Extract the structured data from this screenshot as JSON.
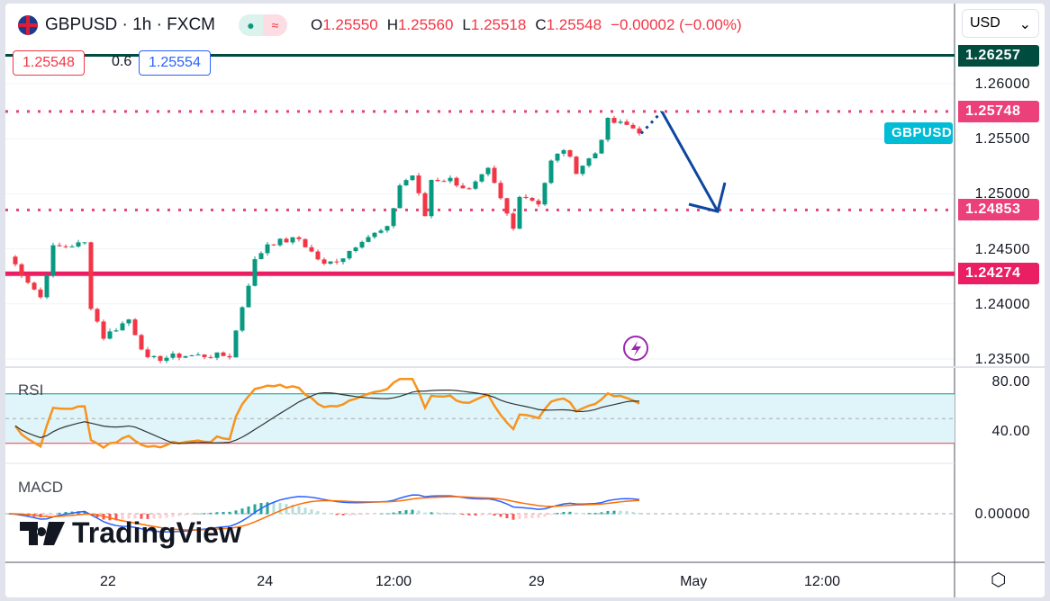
{
  "header": {
    "symbol": "GBPUSD",
    "interval": "1h",
    "exchange": "FXCM",
    "sep": "·",
    "open_l": "O",
    "open": "1.25550",
    "high_l": "H",
    "high": "1.25560",
    "low_l": "L",
    "low": "1.25518",
    "close_l": "C",
    "close": "1.25548",
    "change": "−0.00002 (−0.00%)"
  },
  "trade": {
    "sell": "1.25548",
    "spread": "0.6",
    "buy": "1.25554"
  },
  "currency": "USD",
  "price_axis": [
    "1.26000",
    "1.25500",
    "1.25000",
    "1.24500",
    "1.24000",
    "1.23500"
  ],
  "levels": [
    {
      "label": "1.26257",
      "price": 1.26257,
      "color": "#004d40",
      "style": "solid"
    },
    {
      "label": "1.25748",
      "price": 1.25748,
      "color": "#ec407a",
      "style": "dotted"
    },
    {
      "label": "1.24853",
      "price": 1.24853,
      "color": "#ec407a",
      "style": "dotted"
    },
    {
      "label": "1.24274",
      "price": 1.24274,
      "color": "#e91e63",
      "style": "solid"
    }
  ],
  "symbol_tag": "GBPUSD",
  "rsi": {
    "label": "RSI",
    "axis": [
      "80.00",
      "40.00"
    ]
  },
  "macd": {
    "label": "MACD",
    "axis": [
      "0.00000"
    ]
  },
  "time_axis": [
    {
      "label": "22",
      "i": 15.7
    },
    {
      "label": "24",
      "i": 40.6
    },
    {
      "label": "12:00",
      "i": 61
    },
    {
      "label": "29",
      "i": 83.7
    },
    {
      "label": "May",
      "i": 108.6
    },
    {
      "label": "12:00",
      "i": 129
    }
  ],
  "brand": "TradingView",
  "colors": {
    "up": "#089981",
    "down": "#f23645",
    "rsi": "#f7931e",
    "arrow": "#0d47a1"
  },
  "chart_data": {
    "type": "candlestick",
    "ylim": [
      1.234,
      1.266
    ],
    "waypoints": [
      [
        0,
        1.2443
      ],
      [
        5,
        1.2406
      ],
      [
        7,
        1.2451
      ],
      [
        12,
        1.2455
      ],
      [
        13,
        1.2398
      ],
      [
        15,
        1.237
      ],
      [
        19,
        1.2386
      ],
      [
        22,
        1.2349
      ],
      [
        27,
        1.2353
      ],
      [
        35,
        1.2353
      ],
      [
        37,
        1.2398
      ],
      [
        39,
        1.2439
      ],
      [
        41,
        1.2455
      ],
      [
        46,
        1.2459
      ],
      [
        50,
        1.2435
      ],
      [
        53,
        1.2443
      ],
      [
        56,
        1.2459
      ],
      [
        60,
        1.2468
      ],
      [
        62,
        1.2508
      ],
      [
        64,
        1.2517
      ],
      [
        66,
        1.248
      ],
      [
        67,
        1.2513
      ],
      [
        70,
        1.2513
      ],
      [
        73,
        1.2503
      ],
      [
        76,
        1.2521
      ],
      [
        80,
        1.2468
      ],
      [
        81,
        1.25
      ],
      [
        84,
        1.2492
      ],
      [
        86,
        1.2529
      ],
      [
        88,
        1.2541
      ],
      [
        90,
        1.2521
      ],
      [
        93,
        1.2537
      ],
      [
        95,
        1.2566
      ],
      [
        98,
        1.2562
      ],
      [
        100,
        1.2557
      ]
    ]
  }
}
